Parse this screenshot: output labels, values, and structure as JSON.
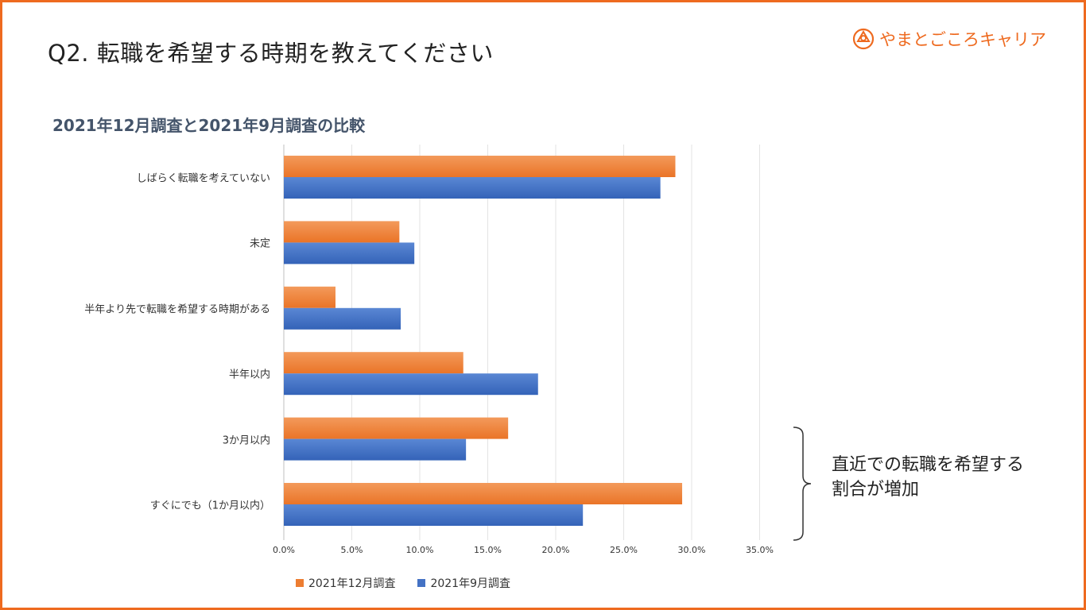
{
  "page": {
    "title": "Q2. 転職を希望する時期を教えてください",
    "brand": "やまとごころキャリア",
    "subtitle": "2021年12月調査と2021年9月調査の比較",
    "annotation": [
      "直近での転職を希望する",
      "割合が増加"
    ]
  },
  "colors": {
    "frame": "#ee6a1f",
    "series1": "#ed7d31",
    "series2": "#4472c4",
    "brand": "#ee6a1f"
  },
  "icons": {
    "brand_logo": "circle-knot-icon"
  },
  "chart_data": {
    "type": "bar",
    "orientation": "horizontal",
    "title": "2021年12月調査と2021年9月調査の比較",
    "categories": [
      "しばらく転職を考えていない",
      "未定",
      "半年より先で転職を希望する時期がある",
      "半年以内",
      "3か月以内",
      "すぐにでも（1か月以内）"
    ],
    "series": [
      {
        "name": "2021年12月調査",
        "values": [
          28.8,
          8.5,
          3.8,
          13.2,
          16.5,
          29.3
        ]
      },
      {
        "name": "2021年9月調査",
        "values": [
          27.7,
          9.6,
          8.6,
          18.7,
          13.4,
          22.0
        ]
      }
    ],
    "xlim": [
      0,
      35
    ],
    "ticks": [
      "0.0%",
      "5.0%",
      "10.0%",
      "15.0%",
      "20.0%",
      "25.0%",
      "30.0%",
      "35.0%"
    ],
    "grid": true,
    "legend": "bottom"
  }
}
